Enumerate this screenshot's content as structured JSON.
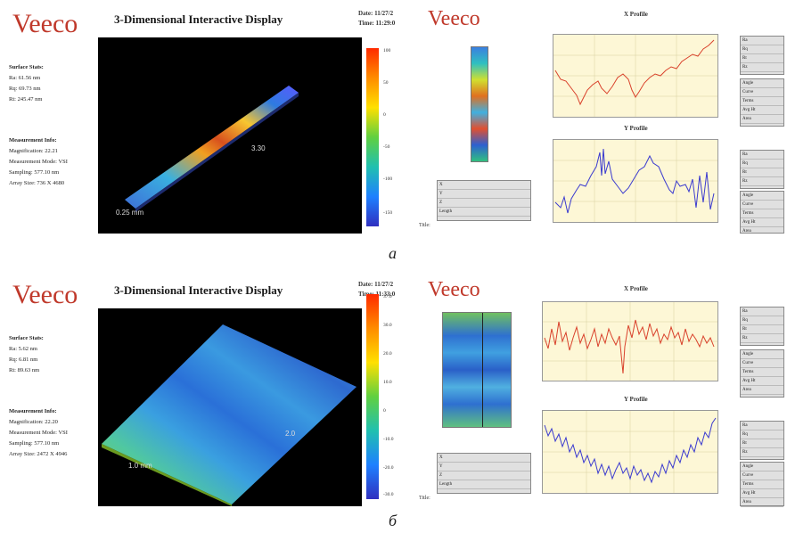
{
  "panel_a": {
    "logo": "Veeco",
    "title": "3-Dimensional Interactive Display",
    "datetime": [
      "Date: 11/27/2",
      "Time: 11:29:0"
    ],
    "surface_stats_header": "Surface Stats:",
    "surface_stats": [
      "Ra: 61.56 nm",
      "Rq: 69.73 nm",
      "Rt: 245.47 nm"
    ],
    "measurement_header": "Measurement Info:",
    "measurement": [
      "Magnification: 22.21",
      "Measurement Mode: VSI",
      "Sampling: 577.10 nm",
      "Array Size: 736 X 4680"
    ],
    "scale_ticks": [
      "100",
      "50",
      "0",
      "-50",
      "-100",
      "-150"
    ],
    "dim_x": "0.25 mm",
    "dim_y": "3.30",
    "right_label_x": "X Profile",
    "right_label_y": "Y Profile",
    "title_label": "Title:",
    "x_stats": [
      "Ra",
      "Rq",
      "Rt",
      "Rz"
    ],
    "x_stats_extra": [
      "Angle",
      "Curve",
      "Terms",
      "Avg Ht",
      "Area"
    ],
    "y_stats": [
      "Ra",
      "Rq",
      "Rt",
      "Rz"
    ],
    "y_stats_extra": [
      "Angle",
      "Curve",
      "Terms",
      "Avg Ht",
      "Area"
    ],
    "bottom_stats": [
      "X",
      "Y",
      "Z",
      "Length"
    ],
    "colors": {
      "line_x": "#d9412b",
      "line_y": "#3a3acf",
      "accent": "#c0392b"
    }
  },
  "panel_b": {
    "logo": "Veeco",
    "title": "3-Dimensional Interactive Display",
    "datetime": [
      "Date: 11/27/2",
      "Time: 11:33:0"
    ],
    "surface_stats_header": "Surface Stats:",
    "surface_stats": [
      "Ra: 5.62 nm",
      "Rq: 6.81 nm",
      "Rt: 89.63 nm"
    ],
    "measurement_header": "Measurement Info:",
    "measurement": [
      "Magnification: 22.20",
      "Measurement Mode: VSI",
      "Sampling: 577.10 nm",
      "Array Size: 2472 X 4946"
    ],
    "scale_ticks": [
      "37.0",
      "30.0",
      "20.0",
      "10.0",
      "0",
      "-10.0",
      "-20.0",
      "-30.0"
    ],
    "dim_x": "1.0 mm",
    "dim_y": "2.0",
    "right_label_x": "X Profile",
    "right_label_y": "Y Profile",
    "title_label": "Title:",
    "x_stats": [
      "Ra",
      "Rq",
      "Rt",
      "Rz"
    ],
    "x_stats_extra": [
      "Angle",
      "Curve",
      "Terms",
      "Avg Ht",
      "Area"
    ],
    "y_stats": [
      "Ra",
      "Rq",
      "Rt",
      "Rz"
    ],
    "y_stats_extra": [
      "Angle",
      "Curve",
      "Terms",
      "Avg Ht",
      "Area"
    ],
    "bottom_stats": [
      "X",
      "Y",
      "Z",
      "Length"
    ]
  },
  "caption_a": "а",
  "caption_b": "б"
}
